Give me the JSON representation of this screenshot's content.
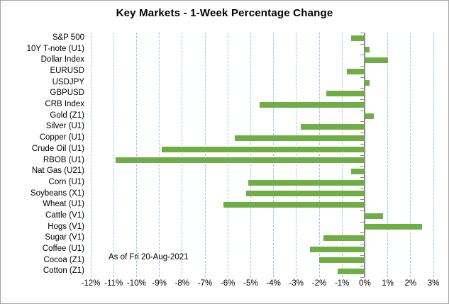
{
  "chart_data": {
    "type": "bar",
    "orientation": "horizontal",
    "title": "Key Markets - 1-Week Percentage Change",
    "annotation": "As of Fri 20-Aug-2021",
    "categories": [
      "S&P 500",
      "10Y T-note (U1)",
      "Dollar Index",
      "EURUSD",
      "USDJPY",
      "GBPUSD",
      "CRB Index",
      "Gold (Z1)",
      "Silver (U1)",
      "Copper (U1)",
      "Crude Oil (U1)",
      "RBOB (U1)",
      "Nat Gas (U21)",
      "Corn (U1)",
      "Soybeans (X1)",
      "Wheat (U1)",
      "Cattle (V1)",
      "Hogs (V1)",
      "Sugar (V1)",
      "Coffee (U1)",
      "Cocoa (Z1)",
      "Cotton (Z1)"
    ],
    "values_pct": [
      -0.6,
      0.2,
      1.0,
      -0.8,
      0.2,
      -1.7,
      -4.6,
      0.4,
      -2.8,
      -5.7,
      -8.9,
      -10.9,
      -0.6,
      -5.1,
      -5.2,
      -6.2,
      0.8,
      2.5,
      -1.8,
      -2.4,
      -2.0,
      -1.2
    ],
    "x_tick_values": [
      -12,
      -11,
      -10,
      -9,
      -8,
      -7,
      -6,
      -5,
      -4,
      -3,
      -2,
      -1,
      0,
      1,
      2,
      3
    ],
    "x_tick_labels": [
      "-12%",
      "-11%",
      "-10%",
      "-9%",
      "-8%",
      "-7%",
      "-6%",
      "-5%",
      "-4%",
      "-3%",
      "-2%",
      "-1%",
      "0%",
      "1%",
      "2%",
      "3%"
    ],
    "xlim": [
      -12,
      3
    ],
    "grid": "vertical-dashed",
    "legend": "none",
    "colors": {
      "bar": "#70AD47",
      "gridline": "#9DC3E6",
      "axis": "#898989",
      "text": "#000000",
      "border": "#A6A6A6",
      "background": "#FFFFFF"
    }
  }
}
